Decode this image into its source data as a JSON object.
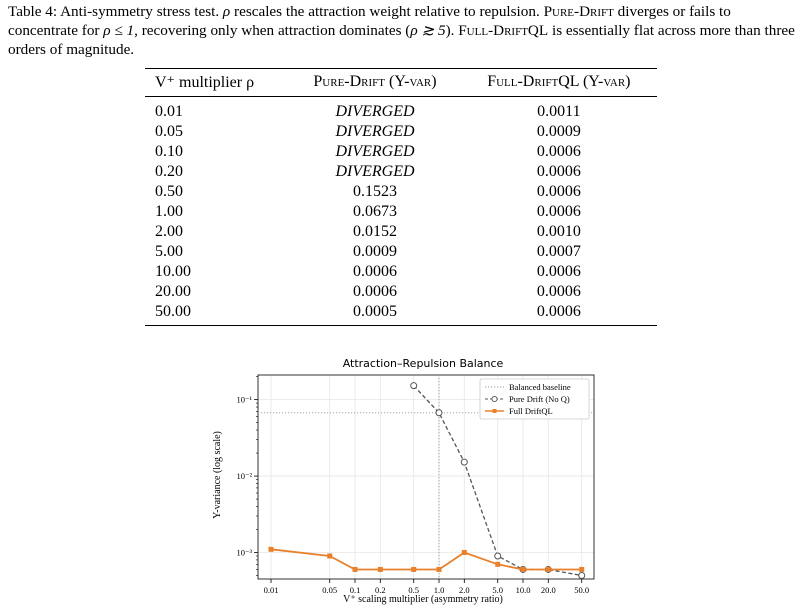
{
  "caption": {
    "label": "Table 4:",
    "text_1": "Anti-symmetry stress test.",
    "rho": "ρ",
    "text_2": "rescales the attraction weight relative to repulsion.",
    "pure_drift": "Pure-Drift",
    "text_3": "diverges or fails to concentrate for",
    "cond_1": "ρ ≤ 1",
    "text_4": ", recovering only when attraction dominates (",
    "cond_2": "ρ ≳ 5",
    "text_5": ").",
    "full_driftql": "Full-DriftQL",
    "text_6": "is essentially flat across more than three orders of magnitude."
  },
  "table": {
    "headers": [
      "V⁺ multiplier ρ",
      "Pure-Drift (Y-var)",
      "Full-DriftQL (Y-var)"
    ],
    "rows": [
      [
        "0.01",
        "DIVERGED",
        "0.0011"
      ],
      [
        "0.05",
        "DIVERGED",
        "0.0009"
      ],
      [
        "0.10",
        "DIVERGED",
        "0.0006"
      ],
      [
        "0.20",
        "DIVERGED",
        "0.0006"
      ],
      [
        "0.50",
        "0.1523",
        "0.0006"
      ],
      [
        "1.00",
        "0.0673",
        "0.0006"
      ],
      [
        "2.00",
        "0.0152",
        "0.0010"
      ],
      [
        "5.00",
        "0.0009",
        "0.0007"
      ],
      [
        "10.00",
        "0.0006",
        "0.0006"
      ],
      [
        "20.00",
        "0.0006",
        "0.0006"
      ],
      [
        "50.00",
        "0.0005",
        "0.0006"
      ]
    ]
  },
  "chart_data": {
    "type": "line",
    "title": "Attraction–Repulsion Balance",
    "xlabel": "V⁺ scaling multiplier (asymmetry ratio)",
    "ylabel": "Y-variance (log scale)",
    "x_scale": "log",
    "y_scale": "log",
    "xticks": [
      0.01,
      0.05,
      0.1,
      0.2,
      0.5,
      1.0,
      2.0,
      5.0,
      10.0,
      20.0,
      50.0
    ],
    "xtick_labels": [
      "0.01",
      "0.05",
      "0.1",
      "0.2",
      "0.5",
      "1.0",
      "2.0",
      "5.0",
      "10.0",
      "20.0",
      "50.0"
    ],
    "xlim": [
      0.007,
      70
    ],
    "yticks": [
      0.001,
      0.01,
      0.1
    ],
    "ytick_labels": [
      "10⁻³",
      "10⁻²",
      "10⁻¹"
    ],
    "ylim": [
      0.00045,
      0.21
    ],
    "grid": true,
    "legend_position": "top-right",
    "baseline": {
      "name": "Balanced baseline",
      "x": 1.0,
      "y": 0.0673,
      "color": "#999999"
    },
    "series": [
      {
        "name": "Pure Drift (No Q)",
        "color": "#555555",
        "marker": "circle",
        "x": [
          0.5,
          1.0,
          2.0,
          5.0,
          10.0,
          20.0,
          50.0
        ],
        "values": [
          0.1523,
          0.0673,
          0.0152,
          0.0009,
          0.0006,
          0.0006,
          0.0005
        ]
      },
      {
        "name": "Full DriftQL",
        "color": "#e8802c",
        "marker": "square",
        "x": [
          0.01,
          0.05,
          0.1,
          0.2,
          0.5,
          1.0,
          2.0,
          5.0,
          10.0,
          20.0,
          50.0
        ],
        "values": [
          0.0011,
          0.0009,
          0.0006,
          0.0006,
          0.0006,
          0.0006,
          0.001,
          0.0007,
          0.0006,
          0.0006,
          0.0006
        ]
      }
    ]
  }
}
